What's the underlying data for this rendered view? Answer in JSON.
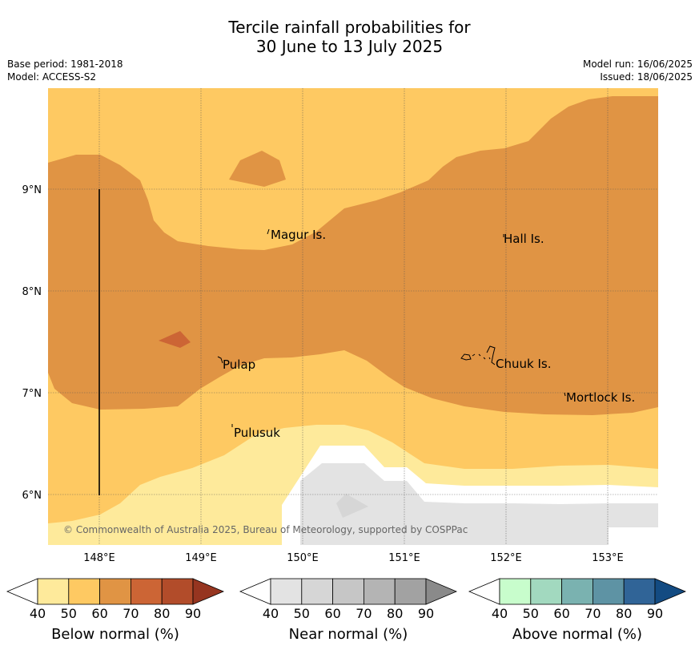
{
  "title_line1": "Tercile rainfall probabilities for",
  "title_line2": "30 June to 13 July 2025",
  "base_period": "Base period: 1981-2018",
  "model": "Model: ACCESS-S2",
  "model_run": "Model run: 16/06/2025",
  "issued": "Issued: 18/06/2025",
  "map": {
    "lon_range": [
      147.5,
      153.5
    ],
    "lat_range": [
      5.5,
      10.0
    ],
    "lon_ticks": [
      "148°E",
      "149°E",
      "150°E",
      "151°E",
      "152°E",
      "153°E"
    ],
    "lat_ticks": [
      "9°N",
      "8°N",
      "7°N",
      "6°N"
    ],
    "places": [
      {
        "name": "Magur Is."
      },
      {
        "name": "Hall Is."
      },
      {
        "name": "Pulap"
      },
      {
        "name": "Chuuk Is."
      },
      {
        "name": "Mortlock Is."
      },
      {
        "name": "Pulusuk"
      }
    ],
    "credit": "© Commonwealth of Australia 2025, Bureau of Meteorology, supported by COSPPac",
    "colors": {
      "below_50_60": "#fec962",
      "below_60_70": "#e09444",
      "below_70_80": "#cc6535",
      "below_40_50": "#feea9b",
      "near_40_50": "#e3e3e3"
    }
  },
  "legends": [
    {
      "label": "Below normal (%)",
      "ticks": [
        "40",
        "50",
        "60",
        "70",
        "80",
        "90"
      ],
      "colors": [
        "#ffffff",
        "#feea9b",
        "#fec962",
        "#e09444",
        "#cc6535",
        "#b24c2a",
        "#963520"
      ]
    },
    {
      "label": "Near normal (%)",
      "ticks": [
        "40",
        "50",
        "60",
        "70",
        "80",
        "90"
      ],
      "colors": [
        "#ffffff",
        "#e3e3e3",
        "#d6d6d6",
        "#c6c6c6",
        "#b4b4b4",
        "#a2a2a2",
        "#8a8a8a"
      ]
    },
    {
      "label": "Above normal (%)",
      "ticks": [
        "40",
        "50",
        "60",
        "70",
        "80",
        "90"
      ],
      "colors": [
        "#ffffff",
        "#c8fdcc",
        "#a2d9bf",
        "#7ab2b0",
        "#5e93a4",
        "#306497",
        "#134b82"
      ]
    }
  ]
}
